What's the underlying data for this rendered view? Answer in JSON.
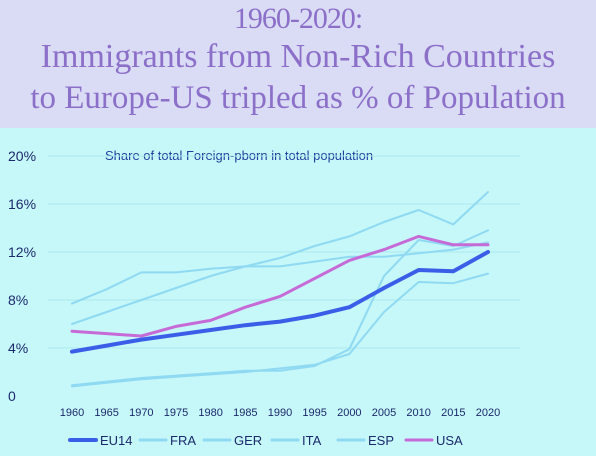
{
  "slide": {
    "title_line1": "1960-2020:",
    "title_line2": "Immigrants from Non-Rich Countries",
    "title_line3": "to Europe-US tripled as % of Population"
  },
  "chart_data": {
    "type": "line",
    "title": "Share of total Foreign-pborn in total population",
    "xlabel": "",
    "ylabel": "",
    "x": [
      1960,
      1965,
      1970,
      1975,
      1980,
      1985,
      1990,
      1995,
      2000,
      2005,
      2010,
      2015,
      2020
    ],
    "x_ticks": [
      "1960",
      "1965",
      "1970",
      "1975",
      "1980",
      "1985",
      "1990",
      "1995",
      "2000",
      "2005",
      "2010",
      "2015",
      "2020"
    ],
    "ylim": [
      0,
      20
    ],
    "y_ticks": [
      0,
      4,
      8,
      12,
      16,
      20
    ],
    "y_tick_labels": [
      "0",
      "4%",
      "8%",
      "12%",
      "16%",
      "20%"
    ],
    "grid": true,
    "legend_position": "bottom",
    "series": [
      {
        "name": "EU14",
        "color": "#3b5ee8",
        "width": 4,
        "values": [
          3.7,
          4.2,
          4.7,
          5.1,
          5.5,
          5.9,
          6.2,
          6.7,
          7.4,
          9.0,
          10.5,
          10.4,
          12.0
        ]
      },
      {
        "name": "FRA",
        "color": "#8fdaf2",
        "width": 2,
        "values": [
          7.7,
          8.9,
          10.3,
          10.3,
          10.6,
          10.8,
          10.8,
          11.2,
          11.6,
          11.6,
          11.9,
          12.2,
          12.8
        ]
      },
      {
        "name": "GER",
        "color": "#8fdaf2",
        "width": 2,
        "values": [
          6.0,
          7.0,
          8.0,
          9.0,
          10.0,
          10.8,
          11.5,
          12.5,
          13.3,
          14.5,
          15.5,
          14.3,
          17.0
        ]
      },
      {
        "name": "ITA",
        "color": "#8fdaf2",
        "width": 2,
        "values": [
          0.8,
          1.1,
          1.4,
          1.6,
          1.8,
          2.0,
          2.3,
          2.6,
          3.5,
          7.0,
          9.5,
          9.4,
          10.2
        ]
      },
      {
        "name": "ESP",
        "color": "#8fdaf2",
        "width": 2,
        "values": [
          0.9,
          1.2,
          1.5,
          1.7,
          1.9,
          2.1,
          2.1,
          2.5,
          3.9,
          10.0,
          13.0,
          12.5,
          13.8
        ]
      },
      {
        "name": "USA",
        "color": "#c66ad8",
        "width": 3,
        "values": [
          5.4,
          5.2,
          5.0,
          5.8,
          6.3,
          7.4,
          8.3,
          9.8,
          11.3,
          12.2,
          13.3,
          12.6,
          12.6
        ]
      }
    ]
  }
}
